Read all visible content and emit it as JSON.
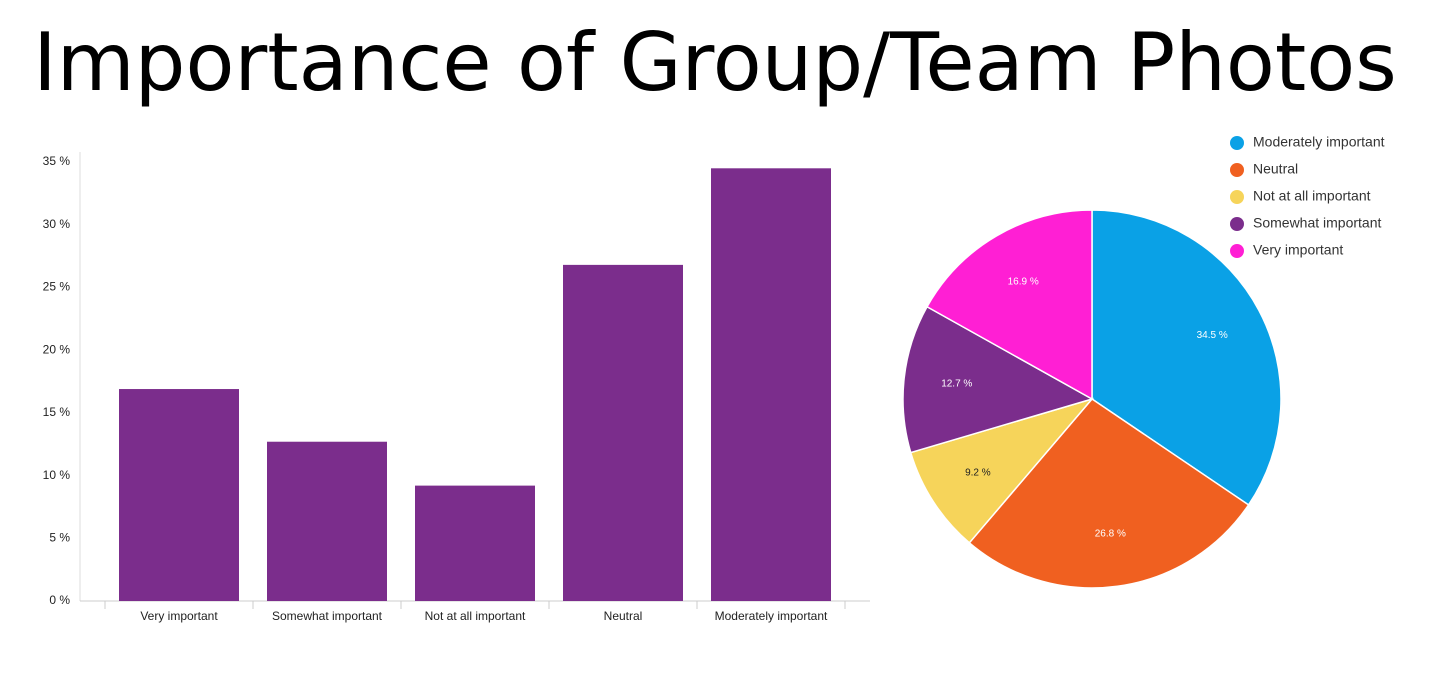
{
  "title": "Importance of Group/Team Photos",
  "chart_data": [
    {
      "type": "bar",
      "categories": [
        "Very important",
        "Somewhat important",
        "Not at all important",
        "Neutral",
        "Moderately important"
      ],
      "values": [
        16.9,
        12.7,
        9.2,
        26.8,
        34.5
      ],
      "color": "#7b2d8c",
      "ylim": [
        0,
        35.8
      ],
      "yticks": [
        {
          "value": 0,
          "label": "0 %"
        },
        {
          "value": 5,
          "label": "5 %"
        },
        {
          "value": 10,
          "label": "10 %"
        },
        {
          "value": 15,
          "label": "15 %"
        },
        {
          "value": 20,
          "label": "20 %"
        },
        {
          "value": 25,
          "label": "25 %"
        },
        {
          "value": 30,
          "label": "30 %"
        },
        {
          "value": 35,
          "label": "35 %"
        }
      ],
      "grid": false
    },
    {
      "type": "pie",
      "categories": [
        "Moderately important",
        "Neutral",
        "Not at all important",
        "Somewhat important",
        "Very important"
      ],
      "values": [
        34.5,
        26.8,
        9.2,
        12.7,
        16.9
      ],
      "value_labels": [
        "34.5 %",
        "26.8 %",
        "9.2 %",
        "12.7 %",
        "16.9 %"
      ],
      "colors": [
        "#0aa1e6",
        "#f06020",
        "#f6d45a",
        "#7b2d8c",
        "#ff1fd4"
      ],
      "legend": "top-right"
    }
  ]
}
